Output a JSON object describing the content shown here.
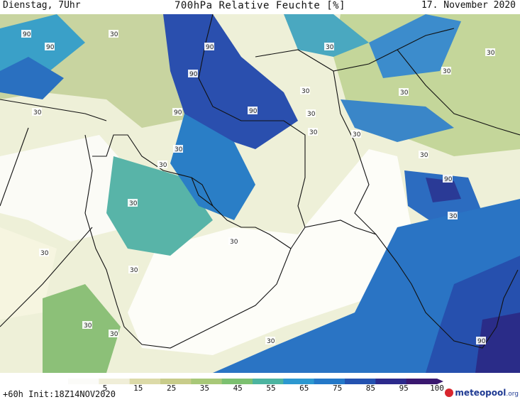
{
  "header": {
    "left": "Dienstag, 7Uhr",
    "title": "700hPa Relative Feuchte [%]",
    "date": "17. November 2020"
  },
  "footer": {
    "run": "+60h  Init:18Z14NOV2020",
    "brand": "meteopool",
    "brand_suffix": ".org"
  },
  "legend": {
    "ticks": [
      "5",
      "15",
      "25",
      "35",
      "45",
      "55",
      "65",
      "75",
      "85",
      "95",
      "100"
    ],
    "colors": [
      "#fbfbf8",
      "#f0eed8",
      "#dcdaa8",
      "#c8cc8a",
      "#a8c878",
      "#7cc070",
      "#4cb4a0",
      "#2c98d0",
      "#2478c8",
      "#2452b0",
      "#2c2a8c",
      "#3a1870"
    ]
  },
  "map": {
    "contour_labels": [
      "90",
      "90",
      "30",
      "90",
      "90",
      "30",
      "90",
      "90",
      "30",
      "30",
      "30",
      "30",
      "30",
      "30",
      "30",
      "30",
      "30",
      "30",
      "30",
      "90",
      "30",
      "30",
      "30",
      "30",
      "30",
      "30",
      "30",
      "30",
      "90"
    ]
  }
}
